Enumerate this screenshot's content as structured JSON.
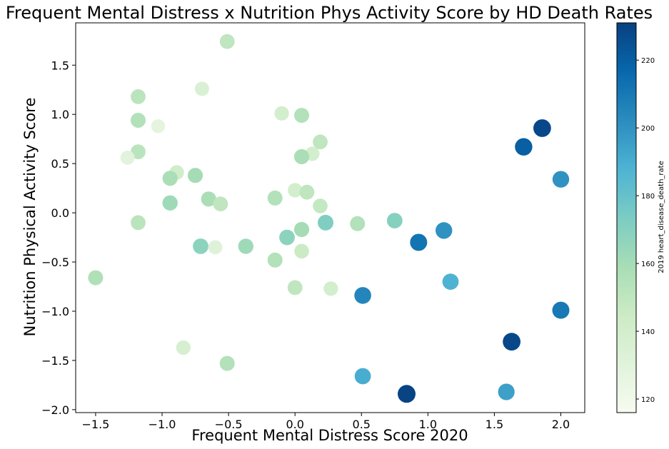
{
  "chart_data": {
    "type": "scatter",
    "title": "Frequent Mental Distress x Nutrition Phys Activity Score by HD Death Rates",
    "xlabel": "Frequent Mental Distress Score 2020",
    "ylabel": "Nutrition Physical Activity Score",
    "xlim": [
      -1.65,
      2.18
    ],
    "ylim": [
      -2.03,
      1.93
    ],
    "xticks": [
      -1.5,
      -1.0,
      -0.5,
      0.0,
      0.5,
      1.0,
      1.5,
      2.0
    ],
    "xtick_labels": [
      "−1.5",
      "−1.0",
      "−0.5",
      "0.0",
      "0.5",
      "1.0",
      "1.5",
      "2.0"
    ],
    "yticks": [
      -2.0,
      -1.5,
      -1.0,
      -0.5,
      0.0,
      0.5,
      1.0,
      1.5
    ],
    "ytick_labels": [
      "−2.0",
      "−1.5",
      "−1.0",
      "−0.5",
      "0.0",
      "0.5",
      "1.0",
      "1.5"
    ],
    "grid": false,
    "colormap": "GnBu",
    "colorbar": {
      "label": "2019 heart_disease_death_rate",
      "range": [
        116,
        231
      ],
      "ticks": [
        120,
        140,
        160,
        180,
        200,
        220
      ],
      "tick_labels": [
        "120",
        "140",
        "160",
        "180",
        "200",
        "220"
      ]
    },
    "points": [
      {
        "x": -0.51,
        "y": 1.74,
        "c": 150
      },
      {
        "x": -0.7,
        "y": 1.26,
        "c": 135
      },
      {
        "x": -1.18,
        "y": 1.18,
        "c": 152
      },
      {
        "x": -1.18,
        "y": 0.94,
        "c": 155
      },
      {
        "x": -1.03,
        "y": 0.88,
        "c": 128
      },
      {
        "x": -1.18,
        "y": 0.62,
        "c": 152
      },
      {
        "x": -1.26,
        "y": 0.56,
        "c": 130
      },
      {
        "x": -0.89,
        "y": 0.41,
        "c": 142
      },
      {
        "x": -0.94,
        "y": 0.35,
        "c": 158
      },
      {
        "x": -0.75,
        "y": 0.38,
        "c": 160
      },
      {
        "x": -0.65,
        "y": 0.14,
        "c": 158
      },
      {
        "x": -0.56,
        "y": 0.09,
        "c": 150
      },
      {
        "x": -0.94,
        "y": 0.1,
        "c": 162
      },
      {
        "x": -1.18,
        "y": -0.1,
        "c": 152
      },
      {
        "x": -1.5,
        "y": -0.66,
        "c": 156
      },
      {
        "x": -0.71,
        "y": -0.34,
        "c": 168
      },
      {
        "x": -0.6,
        "y": -0.35,
        "c": 132
      },
      {
        "x": -0.37,
        "y": -0.34,
        "c": 162
      },
      {
        "x": -0.84,
        "y": -1.37,
        "c": 138
      },
      {
        "x": -0.51,
        "y": -1.53,
        "c": 155
      },
      {
        "x": -0.1,
        "y": 1.01,
        "c": 140
      },
      {
        "x": 0.05,
        "y": 0.99,
        "c": 155
      },
      {
        "x": 0.19,
        "y": 0.72,
        "c": 150
      },
      {
        "x": 0.13,
        "y": 0.6,
        "c": 140
      },
      {
        "x": 0.05,
        "y": 0.57,
        "c": 158
      },
      {
        "x": 0.0,
        "y": 0.23,
        "c": 140
      },
      {
        "x": 0.09,
        "y": 0.21,
        "c": 150
      },
      {
        "x": -0.15,
        "y": 0.15,
        "c": 155
      },
      {
        "x": 0.19,
        "y": 0.07,
        "c": 148
      },
      {
        "x": 0.05,
        "y": -0.17,
        "c": 160
      },
      {
        "x": -0.06,
        "y": -0.25,
        "c": 168
      },
      {
        "x": 0.05,
        "y": -0.39,
        "c": 145
      },
      {
        "x": -0.15,
        "y": -0.48,
        "c": 155
      },
      {
        "x": 0.0,
        "y": -0.76,
        "c": 150
      },
      {
        "x": 0.27,
        "y": -0.77,
        "c": 140
      },
      {
        "x": 0.23,
        "y": -0.1,
        "c": 172
      },
      {
        "x": 0.47,
        "y": -0.11,
        "c": 155
      },
      {
        "x": 0.75,
        "y": -0.08,
        "c": 170
      },
      {
        "x": 0.93,
        "y": -0.3,
        "c": 212
      },
      {
        "x": 1.12,
        "y": -0.18,
        "c": 200
      },
      {
        "x": 1.17,
        "y": -0.7,
        "c": 188
      },
      {
        "x": 0.51,
        "y": -0.84,
        "c": 205
      },
      {
        "x": 0.51,
        "y": -1.66,
        "c": 190
      },
      {
        "x": 0.84,
        "y": -1.84,
        "c": 230
      },
      {
        "x": 1.59,
        "y": -1.82,
        "c": 195
      },
      {
        "x": 1.63,
        "y": -1.31,
        "c": 228
      },
      {
        "x": 2.0,
        "y": -0.99,
        "c": 210
      },
      {
        "x": 2.0,
        "y": 0.34,
        "c": 200
      },
      {
        "x": 1.72,
        "y": 0.67,
        "c": 220
      },
      {
        "x": 1.86,
        "y": 0.86,
        "c": 228
      }
    ]
  }
}
